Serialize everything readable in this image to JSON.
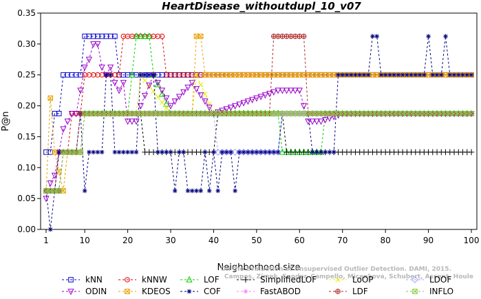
{
  "chart_data": {
    "type": "line",
    "title": "HeartDisease_withoutdupl_10_v07",
    "xlabel": "Neighborhood size",
    "ylabel": "P@n",
    "xlim": [
      1,
      100
    ],
    "ylim": [
      0,
      0.35
    ],
    "xticks": [
      1,
      10,
      20,
      30,
      40,
      50,
      60,
      70,
      80,
      90,
      100
    ],
    "yticks": [
      0.0,
      0.05,
      0.1,
      0.15,
      0.2,
      0.25,
      0.3,
      0.35
    ],
    "grid": false,
    "legend_position": "bottom",
    "credit_line1": "Campos, Zimek, Sander, Campello, Micenkova, Schubert, Assent, Houle",
    "credit_line2": "On the Evaluation of Unsupervised Outlier Detection. DAMI, 2015.",
    "series": [
      {
        "name": "kNN",
        "color": "#0000cc",
        "marker": "square",
        "dash": "3,3",
        "points": [
          [
            1,
            0.125
          ],
          [
            2,
            0.125
          ],
          [
            3,
            0.1875
          ],
          [
            4,
            0.1875
          ],
          [
            5,
            0.25
          ],
          [
            9,
            0.25
          ],
          [
            10,
            0.3125
          ],
          [
            17,
            0.3125
          ],
          [
            18,
            0.25
          ],
          [
            100,
            0.25
          ]
        ]
      },
      {
        "name": "kNNW",
        "color": "#dd0000",
        "marker": "circle",
        "dash": "3,3",
        "points": [
          [
            1,
            0.0625
          ],
          [
            3,
            0.0625
          ],
          [
            4,
            0.125
          ],
          [
            6,
            0.125
          ],
          [
            7,
            0.1875
          ],
          [
            9,
            0.1875
          ],
          [
            10,
            0.25
          ],
          [
            18,
            0.25
          ],
          [
            19,
            0.3125
          ],
          [
            28,
            0.3125
          ],
          [
            29,
            0.25
          ],
          [
            100,
            0.25
          ]
        ]
      },
      {
        "name": "LOF",
        "color": "#00cc00",
        "marker": "triangle",
        "dash": "3,3",
        "points": [
          [
            1,
            0.0625
          ],
          [
            4,
            0.0625
          ],
          [
            5,
            0.125
          ],
          [
            9,
            0.125
          ],
          [
            10,
            0.1875
          ],
          [
            20,
            0.1875
          ],
          [
            21,
            0.25
          ],
          [
            22,
            0.3125
          ],
          [
            25,
            0.3125
          ],
          [
            26,
            0.25
          ],
          [
            30,
            0.1875
          ],
          [
            40,
            0.1875
          ],
          [
            55,
            0.1875
          ],
          [
            56,
            0.125
          ],
          [
            65,
            0.125
          ],
          [
            66,
            0.1875
          ],
          [
            100,
            0.1875
          ]
        ]
      },
      {
        "name": "SimplifiedLOF",
        "color": "#000000",
        "marker": "plus",
        "dash": "3,3",
        "points": [
          [
            1,
            0.0625
          ],
          [
            4,
            0.0625
          ],
          [
            5,
            0.125
          ],
          [
            9,
            0.125
          ],
          [
            10,
            0.1875
          ],
          [
            23,
            0.1875
          ],
          [
            24,
            0.125
          ],
          [
            40,
            0.125
          ],
          [
            41,
            0.1875
          ],
          [
            56,
            0.1875
          ],
          [
            57,
            0.125
          ],
          [
            100,
            0.125
          ]
        ]
      },
      {
        "name": "LoOP",
        "color": "#e8e800",
        "marker": "x",
        "dash": "3,3",
        "points": [
          [
            1,
            0.0625
          ],
          [
            5,
            0.0625
          ],
          [
            6,
            0.125
          ],
          [
            9,
            0.125
          ],
          [
            10,
            0.1875
          ],
          [
            22,
            0.1875
          ],
          [
            23,
            0.25
          ],
          [
            30,
            0.1875
          ],
          [
            35,
            0.1875
          ],
          [
            36,
            0.25
          ],
          [
            40,
            0.1875
          ],
          [
            100,
            0.1875
          ]
        ]
      },
      {
        "name": "LDOF",
        "color": "#a0a0ff",
        "marker": "diamond",
        "dash": "3,3",
        "points": [
          [
            1,
            0.0625
          ],
          [
            4,
            0.0625
          ],
          [
            5,
            0.125
          ],
          [
            8,
            0.125
          ],
          [
            9,
            0.1875
          ],
          [
            40,
            0.1875
          ],
          [
            41,
            0.125
          ],
          [
            55,
            0.125
          ],
          [
            56,
            0.1875
          ],
          [
            100,
            0.1875
          ]
        ]
      },
      {
        "name": "ODIN",
        "color": "#9900cc",
        "marker": "triangle-down",
        "dash": "3,3",
        "points": [
          [
            1,
            0.05
          ],
          [
            2,
            0.075
          ],
          [
            3,
            0.0875
          ],
          [
            4,
            0.125
          ],
          [
            5,
            0.1625
          ],
          [
            6,
            0.175
          ],
          [
            7,
            0.1875
          ],
          [
            8,
            0.1875
          ],
          [
            9,
            0.225
          ],
          [
            10,
            0.2625
          ],
          [
            11,
            0.275
          ],
          [
            12,
            0.3
          ],
          [
            13,
            0.3
          ],
          [
            14,
            0.2625
          ],
          [
            15,
            0.25
          ],
          [
            16,
            0.2625
          ],
          [
            17,
            0.2375
          ],
          [
            18,
            0.225
          ],
          [
            19,
            0.2375
          ],
          [
            20,
            0.175
          ],
          [
            21,
            0.175
          ],
          [
            22,
            0.175
          ],
          [
            23,
            0.2
          ],
          [
            26,
            0.25
          ],
          [
            30,
            0.2
          ],
          [
            35,
            0.2375
          ],
          [
            40,
            0.1875
          ],
          [
            45,
            0.2
          ],
          [
            55,
            0.225
          ],
          [
            60,
            0.225
          ],
          [
            62,
            0.175
          ],
          [
            65,
            0.175
          ],
          [
            70,
            0.1875
          ],
          [
            100,
            0.1875
          ]
        ]
      },
      {
        "name": "KDEOS",
        "color": "#e8a000",
        "marker": "square-x",
        "dash": "3,3",
        "points": [
          [
            1,
            0.0625
          ],
          [
            2,
            0.2125
          ],
          [
            3,
            0.125
          ],
          [
            5,
            0.0625
          ],
          [
            6,
            0.125
          ],
          [
            9,
            0.125
          ],
          [
            10,
            0.1875
          ],
          [
            35,
            0.1875
          ],
          [
            36,
            0.3125
          ],
          [
            37,
            0.3125
          ],
          [
            38,
            0.25
          ],
          [
            100,
            0.25
          ]
        ]
      },
      {
        "name": "COF",
        "color": "#000080",
        "marker": "asterisk",
        "dash": "3,3",
        "points": [
          [
            1,
            0.0625
          ],
          [
            2,
            0.0
          ],
          [
            3,
            0.0625
          ],
          [
            4,
            0.125
          ],
          [
            8,
            0.125
          ],
          [
            9,
            0.1875
          ],
          [
            10,
            0.0625
          ],
          [
            11,
            0.125
          ],
          [
            14,
            0.125
          ],
          [
            15,
            0.25
          ],
          [
            16,
            0.25
          ],
          [
            17,
            0.125
          ],
          [
            22,
            0.125
          ],
          [
            23,
            0.25
          ],
          [
            26,
            0.25
          ],
          [
            27,
            0.125
          ],
          [
            30,
            0.125
          ],
          [
            31,
            0.0625
          ],
          [
            32,
            0.125
          ],
          [
            33,
            0.125
          ],
          [
            34,
            0.0625
          ],
          [
            37,
            0.0625
          ],
          [
            38,
            0.125
          ],
          [
            39,
            0.0625
          ],
          [
            40,
            0.125
          ],
          [
            41,
            0.0625
          ],
          [
            42,
            0.125
          ],
          [
            44,
            0.125
          ],
          [
            45,
            0.0625
          ],
          [
            46,
            0.125
          ],
          [
            55,
            0.125
          ],
          [
            56,
            0.1875
          ],
          [
            62,
            0.1875
          ],
          [
            63,
            0.125
          ],
          [
            68,
            0.125
          ],
          [
            69,
            0.25
          ],
          [
            76,
            0.25
          ],
          [
            77,
            0.3125
          ],
          [
            78,
            0.3125
          ],
          [
            79,
            0.25
          ],
          [
            89,
            0.25
          ],
          [
            90,
            0.3125
          ],
          [
            91,
            0.25
          ],
          [
            93,
            0.25
          ],
          [
            94,
            0.3125
          ],
          [
            95,
            0.25
          ],
          [
            100,
            0.25
          ]
        ]
      },
      {
        "name": "FastABOD",
        "color": "#ff80ff",
        "marker": "star",
        "dash": "3,3",
        "points": [
          [
            1,
            0.0625
          ],
          [
            4,
            0.0625
          ],
          [
            5,
            0.125
          ],
          [
            9,
            0.125
          ],
          [
            10,
            0.1875
          ],
          [
            100,
            0.1875
          ]
        ]
      },
      {
        "name": "LDF",
        "color": "#aa2222",
        "marker": "circle-plus",
        "dash": "3,3",
        "points": [
          [
            1,
            0.0625
          ],
          [
            4,
            0.0625
          ],
          [
            5,
            0.125
          ],
          [
            8,
            0.125
          ],
          [
            9,
            0.1875
          ],
          [
            53,
            0.1875
          ],
          [
            54,
            0.3125
          ],
          [
            61,
            0.3125
          ],
          [
            62,
            0.1875
          ],
          [
            100,
            0.1875
          ]
        ]
      },
      {
        "name": "INFLO",
        "color": "#88cc44",
        "marker": "square-x",
        "dash": "3,3",
        "points": [
          [
            1,
            0.0625
          ],
          [
            4,
            0.0625
          ],
          [
            5,
            0.125
          ],
          [
            9,
            0.125
          ],
          [
            10,
            0.1875
          ],
          [
            100,
            0.1875
          ]
        ]
      }
    ]
  }
}
